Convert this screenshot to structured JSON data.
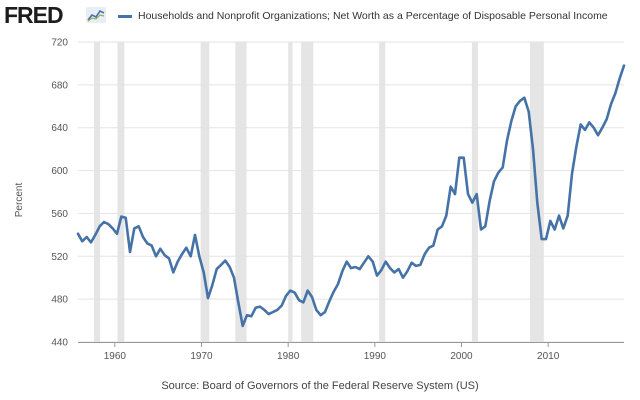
{
  "header": {
    "logo_text": "FRED",
    "legend_label": "Households and Nonprofit Organizations; Net Worth as a Percentage of Disposable Personal Income"
  },
  "source": "Source: Board of Governors of the Federal Reserve System (US)",
  "chart_data": {
    "type": "line",
    "title": "",
    "xlabel": "",
    "ylabel": "Percent",
    "x_range": [
      1955.75,
      2018.75
    ],
    "ylim": [
      440,
      720
    ],
    "y_ticks": [
      440,
      480,
      520,
      560,
      600,
      640,
      680,
      720
    ],
    "x_ticks": [
      1960,
      1970,
      1980,
      1990,
      2000,
      2010
    ],
    "grid": "horizontal",
    "series_color": "#4572a7",
    "recession_color": "#e5e5e5",
    "recessions": [
      [
        1957.6,
        1958.3
      ],
      [
        1960.3,
        1961.1
      ],
      [
        1969.9,
        1970.9
      ],
      [
        1973.9,
        1975.2
      ],
      [
        1980.0,
        1980.5
      ],
      [
        1981.5,
        1982.9
      ],
      [
        1990.5,
        1991.2
      ],
      [
        2001.2,
        2001.9
      ],
      [
        2007.9,
        2009.5
      ]
    ],
    "series": [
      {
        "x": [
          1955.75,
          1956.25,
          1956.75,
          1957.25,
          1957.75,
          1958.25,
          1958.75,
          1959.25,
          1959.75,
          1960.25,
          1960.75,
          1961.25,
          1961.75,
          1962.25,
          1962.75,
          1963.25,
          1963.75,
          1964.25,
          1964.75,
          1965.25,
          1965.75,
          1966.25,
          1966.75,
          1967.25,
          1967.75,
          1968.25,
          1968.75,
          1969.25,
          1969.75,
          1970.25,
          1970.75,
          1971.25,
          1971.75,
          1972.25,
          1972.75,
          1973.25,
          1973.75,
          1974.25,
          1974.75,
          1975.25,
          1975.75,
          1976.25,
          1976.75,
          1977.25,
          1977.75,
          1978.25,
          1978.75,
          1979.25,
          1979.75,
          1980.25,
          1980.75,
          1981.25,
          1981.75,
          1982.25,
          1982.75,
          1983.25,
          1983.75,
          1984.25,
          1984.75,
          1985.25,
          1985.75,
          1986.25,
          1986.75,
          1987.25,
          1987.75,
          1988.25,
          1988.75,
          1989.25,
          1989.75,
          1990.25,
          1990.75,
          1991.25,
          1991.75,
          1992.25,
          1992.75,
          1993.25,
          1993.75,
          1994.25,
          1994.75,
          1995.25,
          1995.75,
          1996.25,
          1996.75,
          1997.25,
          1997.75,
          1998.25,
          1998.75,
          1999.25,
          1999.75,
          2000.25,
          2000.75,
          2001.25,
          2001.75,
          2002.25,
          2002.75,
          2003.25,
          2003.75,
          2004.25,
          2004.75,
          2005.25,
          2005.75,
          2006.25,
          2006.75,
          2007.25,
          2007.75,
          2008.25,
          2008.75,
          2009.25,
          2009.75,
          2010.25,
          2010.75,
          2011.25,
          2011.75,
          2012.25,
          2012.75,
          2013.25,
          2013.75,
          2014.25,
          2014.75,
          2015.25,
          2015.75,
          2016.25,
          2016.75,
          2017.25,
          2017.75,
          2018.25,
          2018.75
        ],
        "y": [
          541,
          534,
          538,
          533,
          540,
          548,
          552,
          550,
          546,
          541,
          557,
          556,
          524,
          546,
          548,
          538,
          532,
          530,
          520,
          527,
          521,
          518,
          505,
          515,
          522,
          528,
          520,
          540,
          520,
          505,
          481,
          493,
          508,
          512,
          516,
          510,
          500,
          477,
          455,
          465,
          464,
          472,
          473,
          470,
          466,
          468,
          470,
          474,
          483,
          488,
          486,
          479,
          477,
          488,
          482,
          470,
          465,
          468,
          478,
          487,
          494,
          506,
          515,
          509,
          510,
          508,
          514,
          520,
          515,
          502,
          507,
          515,
          509,
          505,
          508,
          500,
          506,
          514,
          511,
          512,
          522,
          528,
          530,
          545,
          548,
          558,
          585,
          578,
          612,
          612,
          578,
          570,
          578,
          545,
          548,
          572,
          590,
          598,
          603,
          628,
          646,
          660,
          665,
          668,
          655,
          620,
          570,
          536,
          536,
          553,
          545,
          558,
          546,
          558,
          597,
          622,
          643,
          638,
          645,
          640,
          633,
          640,
          648,
          662,
          672,
          686,
          698
        ]
      }
    ]
  }
}
